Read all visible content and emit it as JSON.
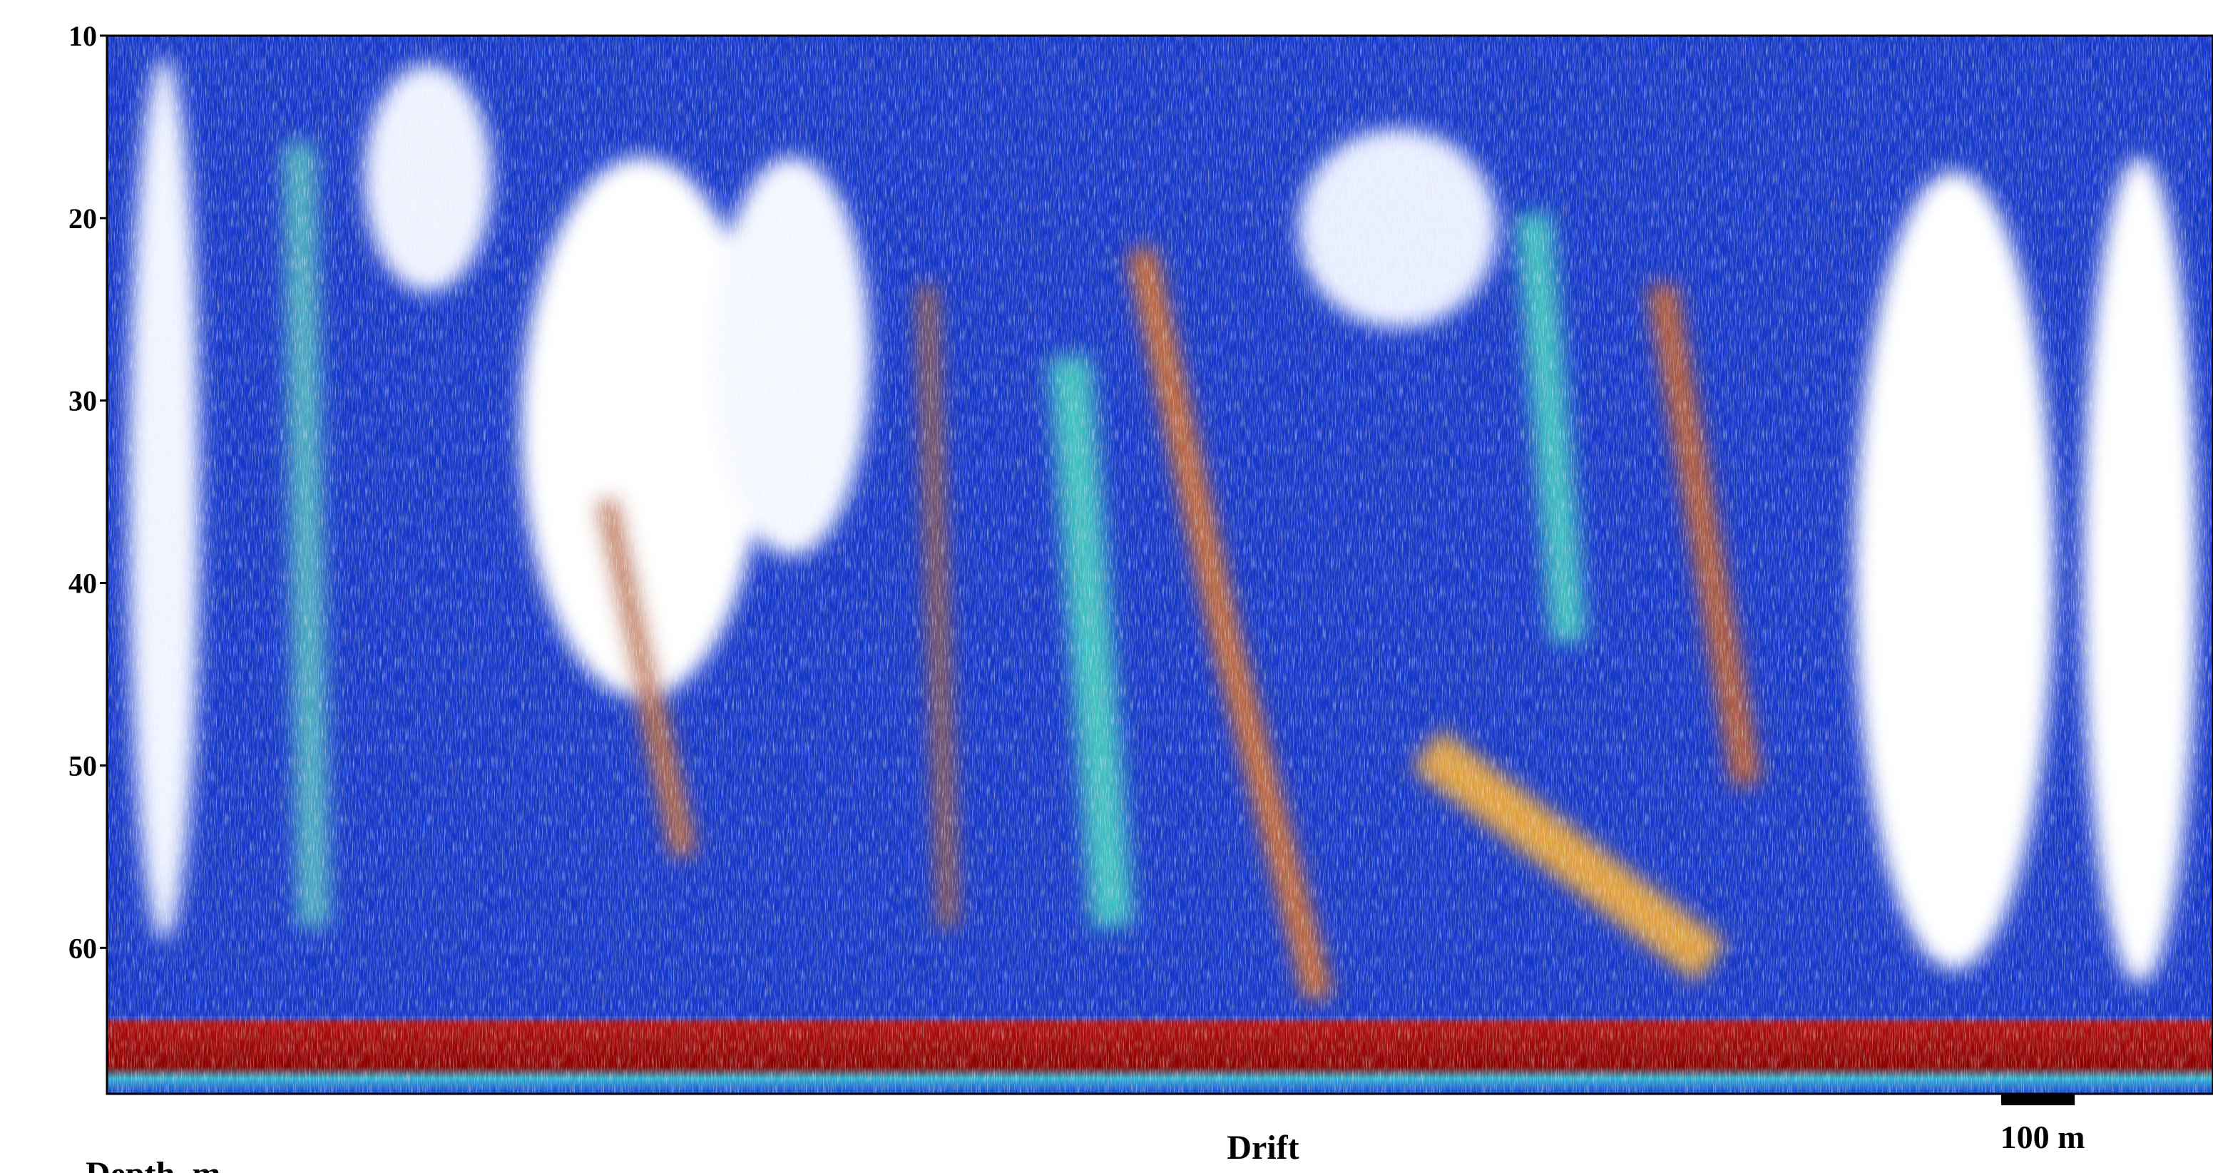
{
  "chart_data": {
    "type": "echogram",
    "ylabel": "Depth, m",
    "xlabel": "Drift",
    "scale_bar": "100 m",
    "ylim": [
      10,
      68
    ],
    "yticks": [
      10,
      20,
      30,
      40,
      50,
      60
    ],
    "inverted_y": true
  }
}
